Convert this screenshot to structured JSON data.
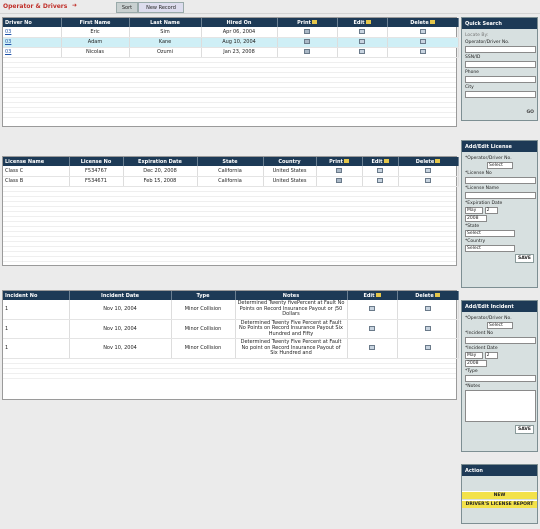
{
  "header": {
    "title": "Operator & Drivers",
    "tabs": [
      "Sort",
      "New Record"
    ]
  },
  "drivers": {
    "columns": [
      "Driver No",
      "First Name",
      "Last Name",
      "Hired On",
      "Print",
      "Edit",
      "Delete"
    ],
    "rows": [
      {
        "no": "03",
        "first": "Eric",
        "last": "Sim",
        "hired": "Apr 06, 2004"
      },
      {
        "no": "03",
        "first": "Adam",
        "last": "Kane",
        "hired": "Aug 10, 2004"
      },
      {
        "no": "03",
        "first": "Nicolas",
        "last": "Ozumi",
        "hired": "Jan 23, 2008"
      }
    ]
  },
  "licenses": {
    "columns": [
      "License Name",
      "License No",
      "Expiration Date",
      "State",
      "Country",
      "Print",
      "Edit",
      "Delete"
    ],
    "rows": [
      {
        "name": "Class C",
        "no": "F534767",
        "exp": "Dec 20, 2008",
        "state": "California",
        "country": "United States"
      },
      {
        "name": "Class B",
        "no": "F534671",
        "exp": "Feb 15, 2008",
        "state": "California",
        "country": "United States"
      }
    ]
  },
  "incidents": {
    "columns": [
      "Incident No",
      "Incident Date",
      "Type",
      "Notes",
      "Edit",
      "Delete"
    ],
    "rows": [
      {
        "no": "1",
        "date": "Nov 10, 2004",
        "type": "Minor Collision",
        "notes": "Determined Twenty fivePercent at Fault No Points on Record Insurance Payout or ¦50 Dollars"
      },
      {
        "no": "1",
        "date": "Nov 10, 2004",
        "type": "Minor Collision",
        "notes": "Determined Twenty Five Percent at Fault No Points on Record Insurance Payout Six Hundred and Fifty"
      },
      {
        "no": "1",
        "date": "Nov 10, 2004",
        "type": "Minor Collision",
        "notes": "Determined Twenty Five Percent at Fault No point on Record Insurance Payout of Six Hundred and"
      }
    ]
  },
  "quick_search": {
    "title": "Quick Search",
    "locate_label": "Locate By:",
    "fields": [
      "Operator/Driver No.",
      "SSN/ID",
      "Phone",
      "City"
    ],
    "go_label": "GO"
  },
  "license_form": {
    "title": "Add/Edit License",
    "operator_label": "*Operator/Driver No.",
    "operator_select": "Select",
    "license_no_label": "*License No",
    "license_name_label": "*License Name",
    "exp_label": "*Expiration Date",
    "exp_month": "May",
    "exp_day": "2",
    "exp_year": "2008",
    "state_label": "*State",
    "state_select": "Select",
    "country_label": "*Country",
    "country_select": "Select",
    "save_label": "SAVE"
  },
  "incident_form": {
    "title": "Add/Edit Incident",
    "operator_label": "*Operator/Driver No.",
    "operator_select": "Select",
    "incident_no_label": "*Incident No",
    "date_label": "*Incident Date",
    "date_month": "May",
    "date_day": "2",
    "date_year": "2008",
    "type_label": "*Type",
    "notes_label": "*Notes",
    "save_label": "SAVE"
  },
  "action": {
    "title": "Action",
    "items": [
      "NEW",
      "DRIVER'S LICENSE REPORT"
    ]
  },
  "colors": {
    "header_bg": "#1d3a56",
    "title_red": "#c0302a",
    "highlight_row": "#cfeff6",
    "action_yellow": "#f3e24a",
    "panel_bg": "#d7e0e0"
  }
}
